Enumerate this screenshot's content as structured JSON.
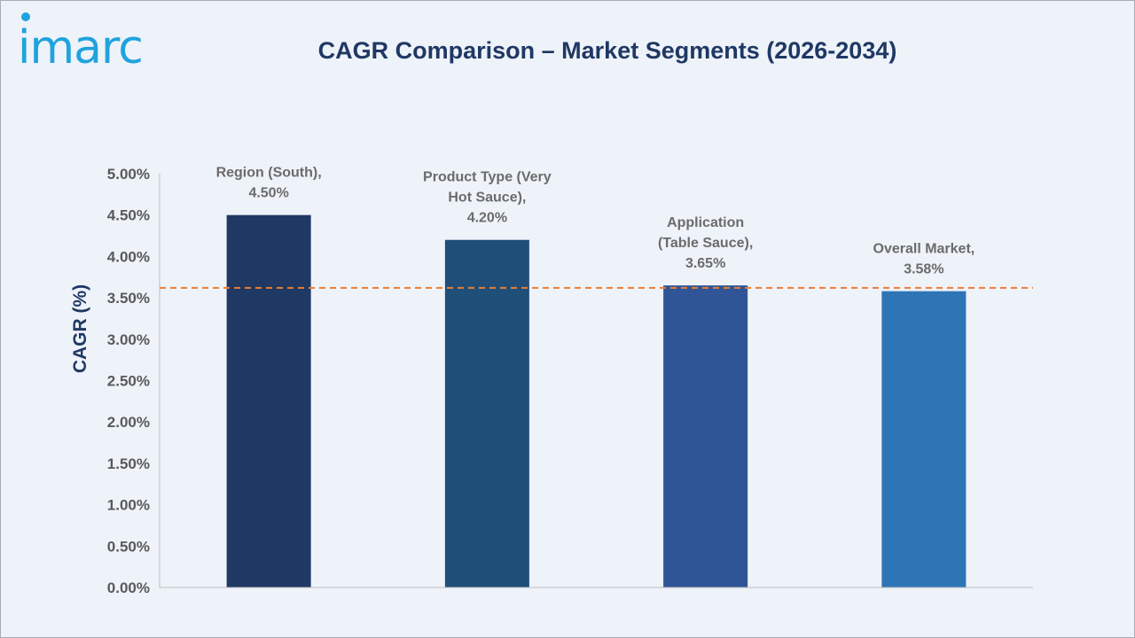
{
  "brand": {
    "logo_text": "imarc",
    "logo_color": "#1fa3dd"
  },
  "chart_data": {
    "type": "bar",
    "title": "CAGR Comparison – Market Segments (2026-2034)",
    "ylabel": "CAGR (%)",
    "xlabel": "",
    "ylim": [
      0,
      5
    ],
    "yticks": [
      0,
      0.5,
      1,
      1.5,
      2,
      2.5,
      3,
      3.5,
      4,
      4.5,
      5
    ],
    "ytick_labels": [
      "0.00%",
      "0.50%",
      "1.00%",
      "1.50%",
      "2.00%",
      "2.50%",
      "3.00%",
      "3.50%",
      "4.00%",
      "4.50%",
      "5.00%"
    ],
    "grid": false,
    "legend": "none",
    "categories": [
      "Region (South)",
      "Product Type (Very Hot Sauce)",
      "Application (Table Sauce)",
      "Overall Market"
    ],
    "values": [
      4.5,
      4.2,
      3.65,
      3.58
    ],
    "data_labels": [
      [
        "Region (South),",
        "4.50%"
      ],
      [
        "Product Type (Very",
        "Hot Sauce),",
        "4.20%"
      ],
      [
        "Application",
        "(Table Sauce),",
        "3.65%"
      ],
      [
        "Overall Market,",
        "3.58%"
      ]
    ],
    "bar_colors": [
      "#1f3864",
      "#1f4e79",
      "#2f5597",
      "#2e75b6"
    ],
    "reference_line": {
      "value": 3.62,
      "style": "dashed",
      "color": "#ed7d31"
    }
  }
}
